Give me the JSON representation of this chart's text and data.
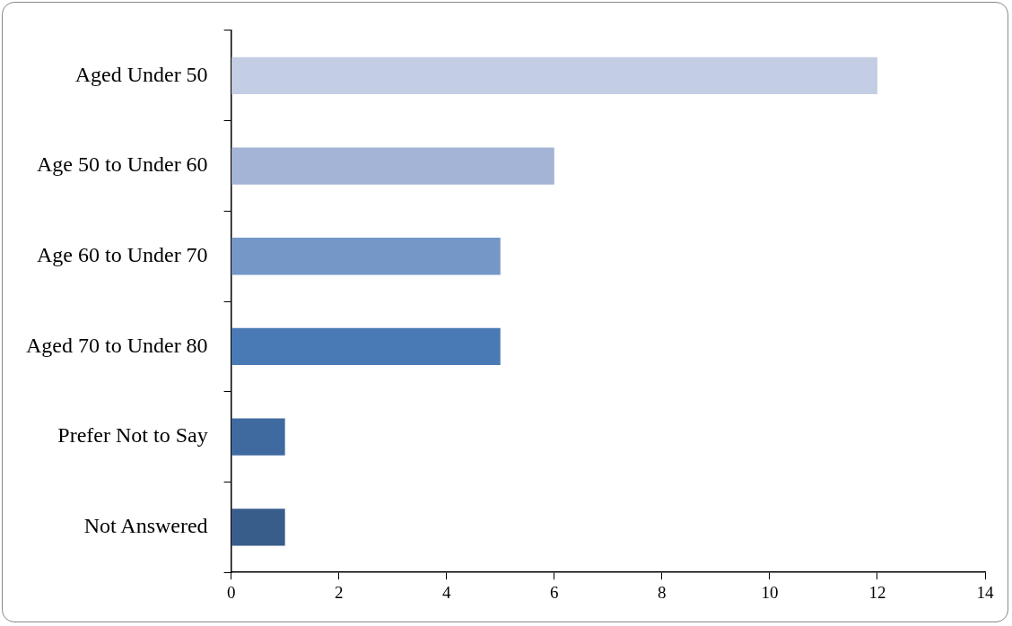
{
  "chart_data": {
    "type": "bar",
    "orientation": "horizontal",
    "categories": [
      "Aged Under 50",
      "Age 50 to Under 60",
      "Age 60 to Under 70",
      "Aged 70 to Under 80",
      "Prefer Not to Say",
      "Not Answered"
    ],
    "values": [
      12,
      6,
      5,
      5,
      1,
      1
    ],
    "colors": [
      "#c3cde3",
      "#a3b4d6",
      "#7597c8",
      "#4a7ab5",
      "#3f6aa0",
      "#385d8a"
    ],
    "xlim": [
      0,
      14
    ],
    "xticks": [
      0,
      2,
      4,
      6,
      8,
      10,
      12,
      14
    ],
    "grid": false,
    "legend": false
  }
}
